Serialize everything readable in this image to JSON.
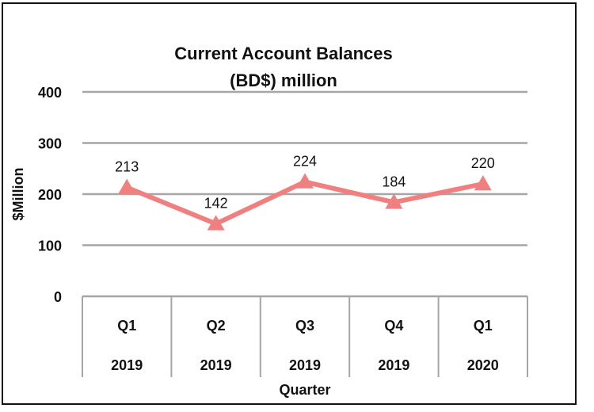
{
  "chart_data": {
    "type": "line",
    "title_lines": [
      "Current Account Balances",
      "(BD$) million"
    ],
    "xlabel": "Quarter",
    "ylabel": "$Million",
    "categories": [
      {
        "quarter": "Q1",
        "year": "2019"
      },
      {
        "quarter": "Q2",
        "year": "2019"
      },
      {
        "quarter": "Q3",
        "year": "2019"
      },
      {
        "quarter": "Q4",
        "year": "2019"
      },
      {
        "quarter": "Q1",
        "year": "2020"
      }
    ],
    "values": [
      213,
      142,
      224,
      184,
      220
    ],
    "data_labels": [
      "213",
      "142",
      "224",
      "184",
      "220"
    ],
    "ylim": [
      0,
      400
    ],
    "yticks": [
      0,
      100,
      200,
      300,
      400
    ],
    "ytick_labels": [
      "0",
      "100",
      "200",
      "300",
      "400"
    ],
    "grid": true,
    "legend": false,
    "marker": "triangle",
    "line_color": "#f08080",
    "grid_color": "#a6a6a6"
  }
}
